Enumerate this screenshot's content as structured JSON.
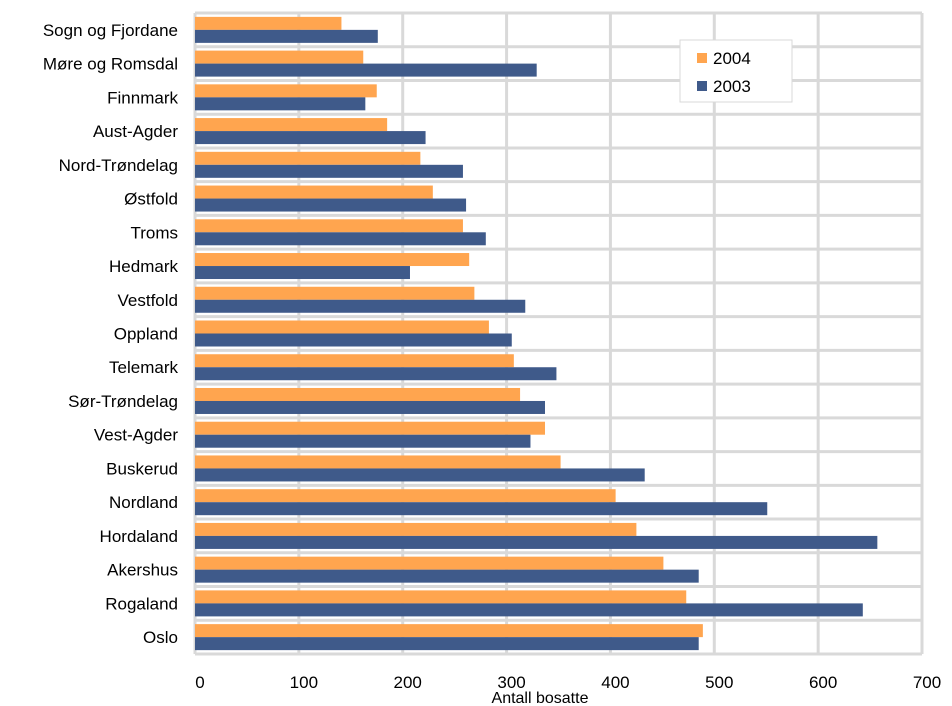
{
  "chart_data": {
    "type": "bar",
    "orientation": "horizontal",
    "xlabel": "Antall bosatte",
    "xlim": [
      0,
      700
    ],
    "xticks": [
      "0",
      "100",
      "200",
      "300",
      "400",
      "500",
      "600",
      "700"
    ],
    "grid": true,
    "legend_position": "top-right",
    "categories": [
      "Sogn og Fjordane",
      "Møre og Romsdal",
      "Finnmark",
      "Aust-Agder",
      "Nord-Trøndelag",
      "Østfold",
      "Troms",
      "Hedmark",
      "Vestfold",
      "Oppland",
      "Telemark",
      "Sør-Trøndelag",
      "Vest-Agder",
      "Buskerud",
      "Nordland",
      "Hordaland",
      "Akershus",
      "Rogaland",
      "Oslo"
    ],
    "series": [
      {
        "name": "2004",
        "color": "#FFA54F",
        "values": [
          141,
          162,
          175,
          185,
          217,
          229,
          258,
          264,
          269,
          283,
          307,
          313,
          337,
          352,
          405,
          425,
          451,
          473,
          489
        ]
      },
      {
        "name": "2003",
        "color": "#3F5A8A",
        "values": [
          176,
          329,
          164,
          222,
          258,
          261,
          280,
          207,
          318,
          305,
          348,
          337,
          323,
          433,
          551,
          657,
          485,
          643,
          485
        ]
      }
    ]
  }
}
